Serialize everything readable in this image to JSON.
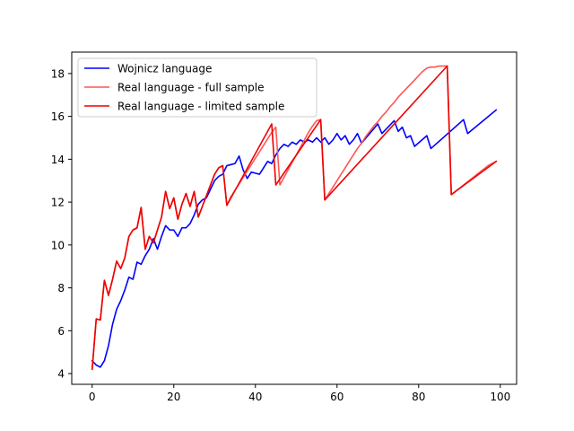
{
  "chart_data": {
    "type": "line",
    "title": "",
    "xlabel": "",
    "ylabel": "",
    "xlim": [
      -5,
      104
    ],
    "ylim": [
      3.5,
      19.0
    ],
    "xticks": [
      0,
      20,
      40,
      60,
      80,
      100
    ],
    "yticks": [
      4,
      6,
      8,
      10,
      12,
      14,
      16,
      18
    ],
    "grid": false,
    "legend_position": "top-left",
    "series": [
      {
        "name": "Wojnicz language",
        "color": "#0000ff",
        "x": [
          0,
          1,
          2,
          3,
          4,
          5,
          6,
          7,
          8,
          9,
          10,
          11,
          12,
          13,
          14,
          15,
          16,
          17,
          18,
          19,
          20,
          21,
          22,
          23,
          24,
          25,
          26,
          27,
          28,
          29,
          30,
          31,
          32,
          33,
          34,
          35,
          36,
          37,
          38,
          39,
          40,
          41,
          42,
          43,
          44,
          45,
          46,
          47,
          48,
          49,
          50,
          51,
          52,
          53,
          54,
          55,
          56,
          57,
          58,
          59,
          60,
          61,
          62,
          63,
          64,
          65,
          66,
          70,
          71,
          74,
          75,
          76,
          77,
          78,
          79,
          82,
          83,
          91,
          92,
          99
        ],
        "y": [
          4.6,
          4.4,
          4.3,
          4.6,
          5.3,
          6.3,
          7.0,
          7.4,
          7.9,
          8.5,
          8.4,
          9.2,
          9.1,
          9.5,
          9.8,
          10.3,
          9.8,
          10.4,
          10.9,
          10.7,
          10.7,
          10.4,
          10.8,
          10.8,
          11.0,
          11.4,
          11.9,
          12.1,
          12.2,
          12.6,
          13.0,
          13.2,
          13.3,
          13.7,
          13.75,
          13.8,
          14.15,
          13.5,
          13.1,
          13.4,
          13.35,
          13.3,
          13.6,
          13.9,
          13.8,
          14.2,
          14.5,
          14.7,
          14.6,
          14.8,
          14.7,
          14.9,
          14.8,
          14.9,
          14.8,
          15.0,
          14.8,
          15.0,
          14.7,
          14.9,
          15.2,
          14.9,
          15.1,
          14.7,
          14.9,
          15.2,
          14.75,
          15.65,
          15.2,
          15.8,
          15.3,
          15.5,
          15.0,
          15.1,
          14.6,
          15.1,
          14.5,
          15.85,
          15.2,
          16.3
        ]
      },
      {
        "name": "Real language - full sample",
        "color": "#ff5555",
        "x": [
          0,
          1,
          2,
          3,
          4,
          5,
          6,
          7,
          8,
          9,
          10,
          11,
          12,
          13,
          14,
          15,
          16,
          17,
          18,
          19,
          20,
          21,
          22,
          23,
          24,
          25,
          26,
          27,
          28,
          29,
          30,
          31,
          32,
          33,
          34,
          35,
          36,
          37,
          38,
          39,
          40,
          41,
          42,
          43,
          44,
          45,
          46,
          47,
          48,
          49,
          50,
          51,
          52,
          53,
          54,
          55,
          56,
          57,
          58,
          59,
          60,
          61,
          62,
          63,
          64,
          65,
          66,
          67,
          68,
          69,
          70,
          71,
          72,
          73,
          74,
          75,
          76,
          77,
          78,
          79,
          80,
          81,
          82,
          83,
          84,
          85,
          86,
          87,
          88,
          89,
          90,
          91,
          92,
          93,
          94,
          95,
          96,
          97,
          98,
          99
        ],
        "y": [
          4.2,
          6.55,
          6.5,
          8.35,
          7.65,
          8.4,
          9.25,
          8.9,
          9.4,
          10.4,
          10.7,
          10.8,
          11.75,
          9.8,
          10.4,
          10.1,
          10.7,
          11.3,
          12.5,
          11.7,
          12.2,
          11.2,
          11.9,
          12.4,
          11.8,
          12.5,
          11.3,
          11.8,
          12.3,
          12.8,
          13.3,
          13.6,
          13.7,
          11.85,
          12.25,
          12.55,
          12.85,
          13.15,
          13.45,
          13.75,
          14.05,
          14.35,
          14.65,
          14.95,
          15.25,
          15.5,
          12.8,
          13.15,
          13.5,
          13.85,
          14.2,
          14.55,
          14.9,
          15.25,
          15.55,
          15.8,
          15.85,
          12.1,
          12.4,
          12.7,
          13.0,
          13.3,
          13.6,
          13.9,
          14.2,
          14.5,
          14.75,
          15.05,
          15.3,
          15.55,
          15.75,
          16.0,
          16.2,
          16.45,
          16.65,
          16.9,
          17.1,
          17.3,
          17.5,
          17.7,
          17.9,
          18.1,
          18.25,
          18.3,
          18.3,
          18.35,
          18.35,
          18.35,
          12.35,
          12.5,
          12.65,
          12.8,
          12.95,
          13.1,
          13.25,
          13.4,
          13.55,
          13.7,
          13.8,
          13.9
        ]
      },
      {
        "name": "Real language - limited sample",
        "color": "#ee0000",
        "x": [
          0,
          1,
          2,
          3,
          4,
          5,
          6,
          7,
          8,
          9,
          10,
          11,
          12,
          13,
          14,
          15,
          16,
          17,
          18,
          19,
          20,
          21,
          22,
          23,
          24,
          25,
          26,
          27,
          28,
          29,
          30,
          31,
          32,
          33,
          44,
          45,
          56,
          57,
          87,
          88,
          99
        ],
        "y": [
          4.2,
          6.55,
          6.5,
          8.35,
          7.65,
          8.4,
          9.25,
          8.9,
          9.4,
          10.4,
          10.7,
          10.8,
          11.75,
          9.8,
          10.4,
          10.1,
          10.7,
          11.3,
          12.5,
          11.7,
          12.2,
          11.2,
          11.9,
          12.4,
          11.8,
          12.5,
          11.3,
          11.8,
          12.3,
          12.8,
          13.3,
          13.6,
          13.7,
          11.85,
          15.65,
          12.8,
          15.85,
          12.1,
          18.35,
          12.35,
          13.9
        ]
      }
    ]
  }
}
